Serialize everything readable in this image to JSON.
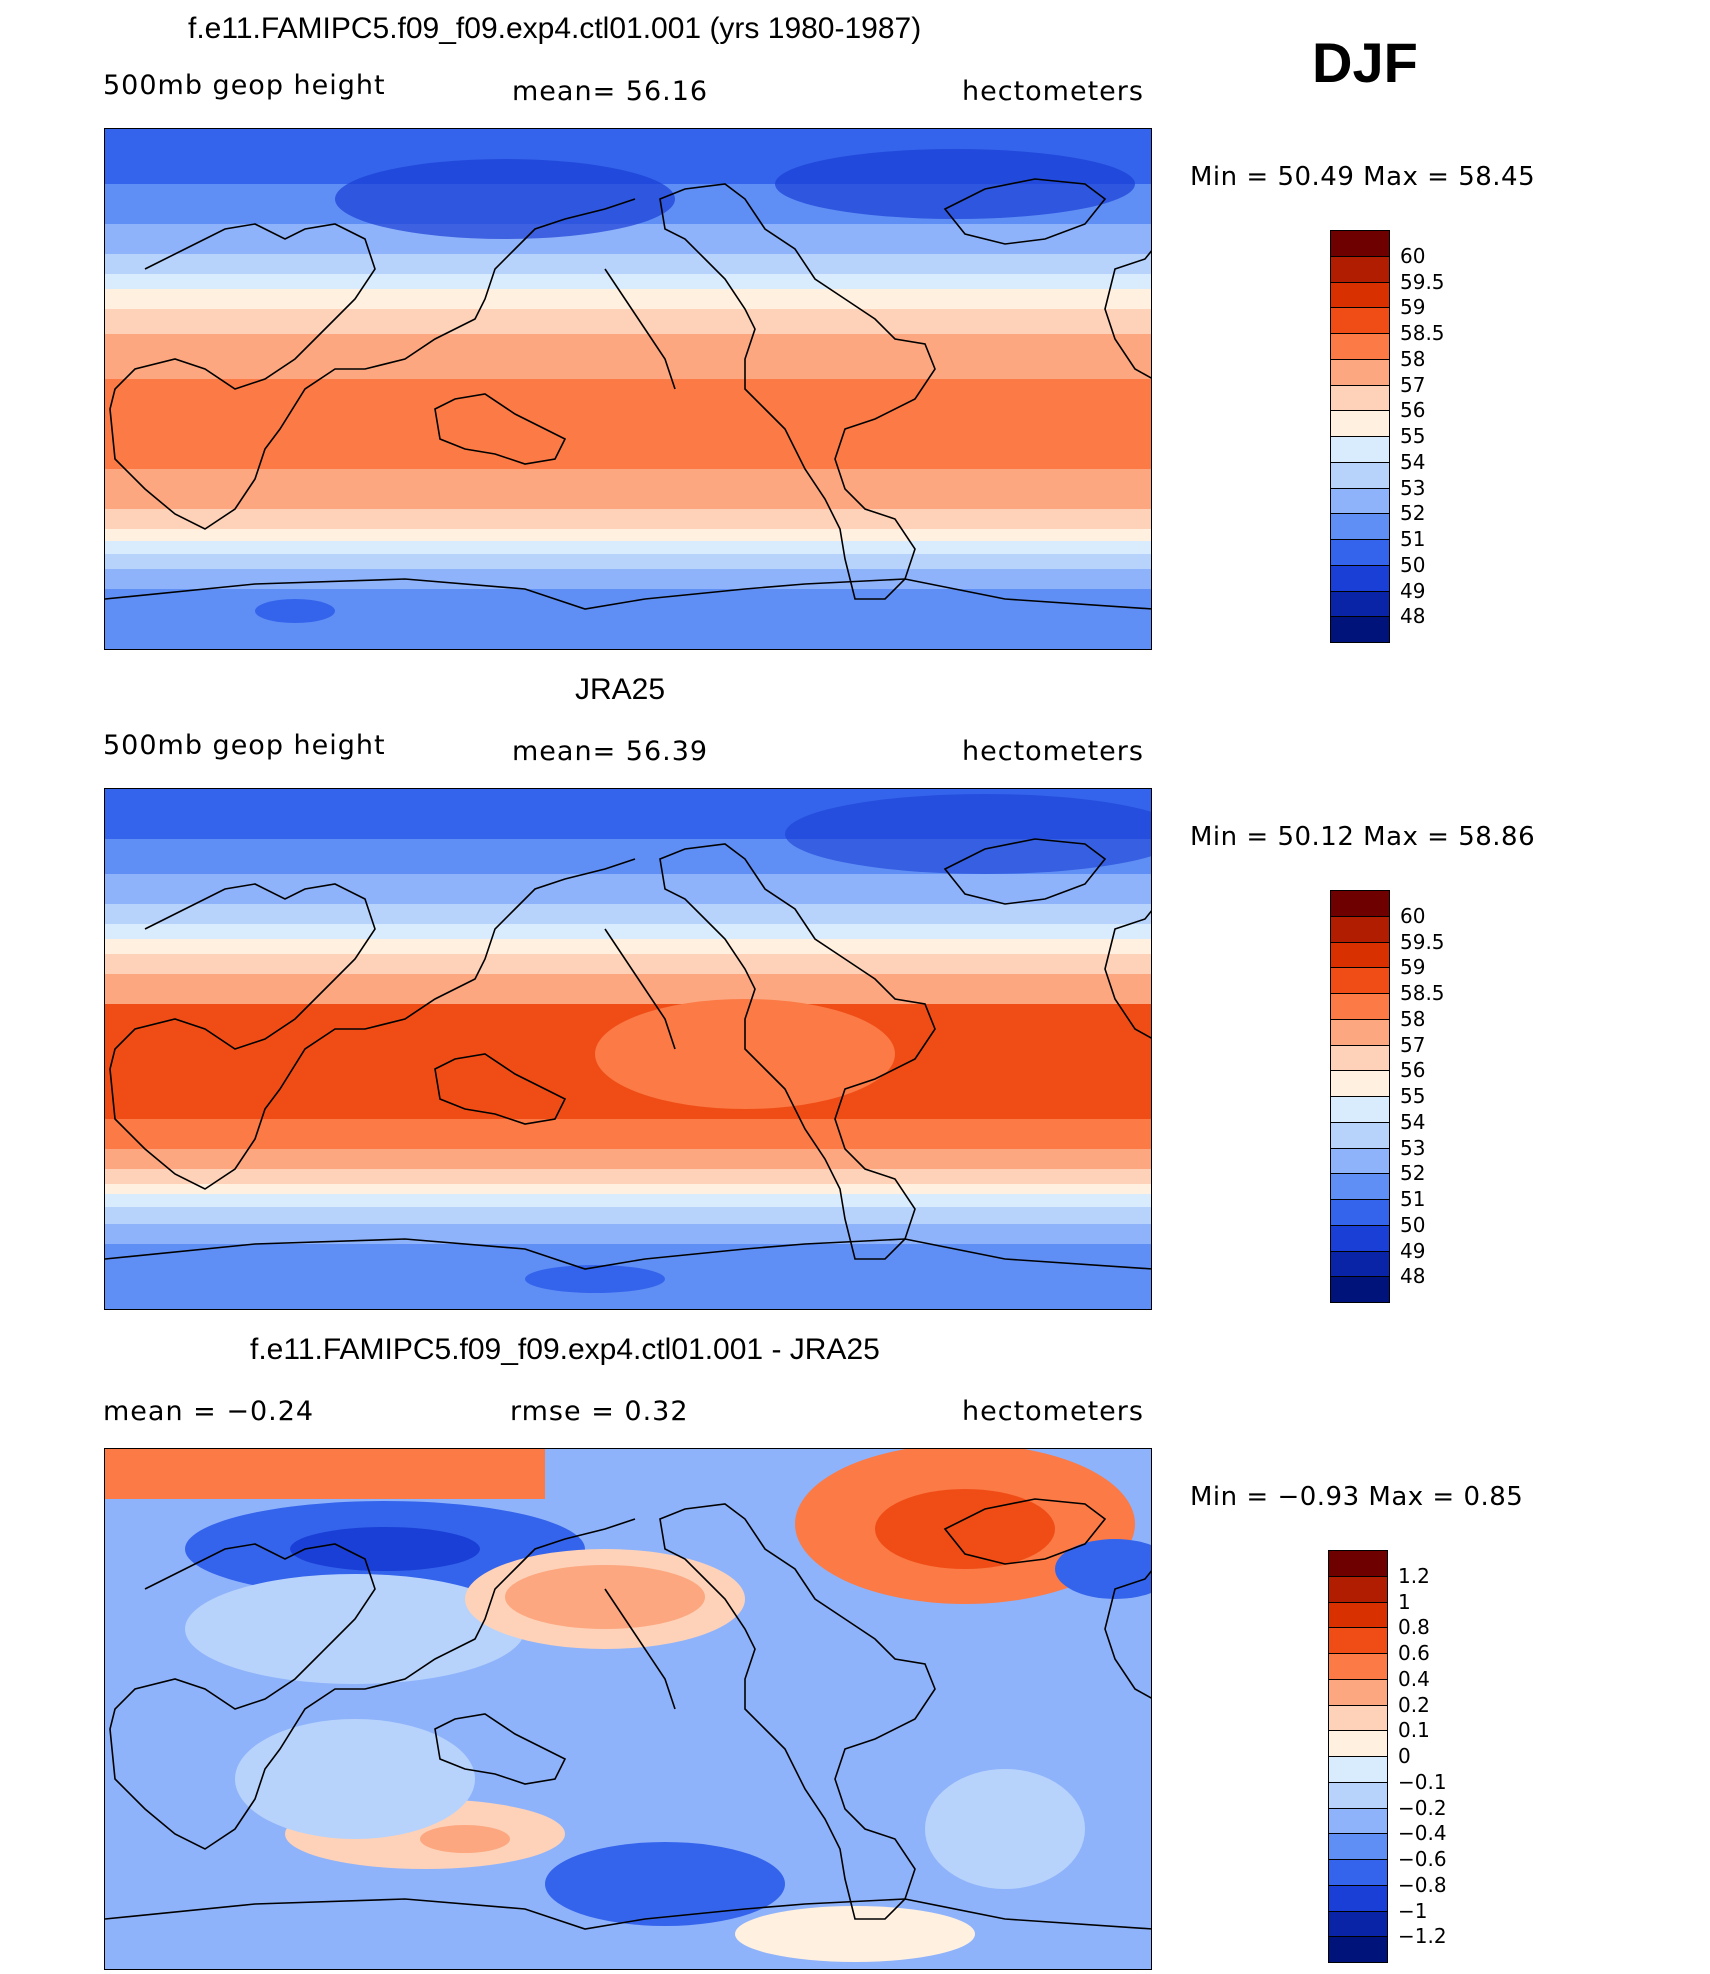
{
  "season": "DJF",
  "panels": [
    {
      "title": "f.e11.FAMIPC5.f09_f09.exp4.ctl01.001 (yrs 1980-1987)",
      "left_label": "500mb  geop  height",
      "center_label": "mean=   56.16",
      "right_label": "hectometers",
      "minmax_label": "Min  =    50.49  Max  =    58.45"
    },
    {
      "title": "JRA25",
      "left_label": "500mb  geop  height",
      "center_label": "mean=   56.39",
      "right_label": "hectometers",
      "minmax_label": "Min  =    50.12  Max  =    58.86"
    },
    {
      "title": "f.e11.FAMIPC5.f09_f09.exp4.ctl01.001 - JRA25",
      "left_label": "mean  =    −0.24",
      "center_label": "rmse  =     0.32",
      "right_label": "hectometers",
      "minmax_label": "Min  =    −0.93  Max  =     0.85"
    }
  ],
  "chart_data": [
    {
      "type": "heatmap",
      "title": "f.e11.FAMIPC5.f09_f09.exp4.ctl01.001 (yrs 1980-1987)",
      "variable": "500mb geop height",
      "units": "hectometers",
      "mean": 56.16,
      "min": 50.49,
      "max": 58.45,
      "colorbar_labels": [
        "60",
        "59.5",
        "59",
        "58.5",
        "58",
        "57",
        "56",
        "55",
        "54",
        "53",
        "52",
        "51",
        "50",
        "49",
        "48"
      ]
    },
    {
      "type": "heatmap",
      "title": "JRA25",
      "variable": "500mb geop height",
      "units": "hectometers",
      "mean": 56.39,
      "min": 50.12,
      "max": 58.86,
      "colorbar_labels": [
        "60",
        "59.5",
        "59",
        "58.5",
        "58",
        "57",
        "56",
        "55",
        "54",
        "53",
        "52",
        "51",
        "50",
        "49",
        "48"
      ]
    },
    {
      "type": "heatmap",
      "title": "f.e11.FAMIPC5.f09_f09.exp4.ctl01.001 - JRA25",
      "units": "hectometers",
      "mean": -0.24,
      "rmse": 0.32,
      "min": -0.93,
      "max": 0.85,
      "colorbar_labels": [
        "1.2",
        "1",
        "0.8",
        "0.6",
        "0.4",
        "0.2",
        "0.1",
        "0",
        "−0.1",
        "−0.2",
        "−0.4",
        "−0.6",
        "−0.8",
        "−1",
        "−1.2"
      ]
    }
  ],
  "colorbar_colors": [
    "#6e0000",
    "#b01d00",
    "#d93000",
    "#f04d16",
    "#fb7a45",
    "#fca77f",
    "#fdd2b8",
    "#fff0e0",
    "#d9ecfd",
    "#b7d3fc",
    "#8fb3fa",
    "#5f8ef5",
    "#3564ec",
    "#1a3fd6",
    "#0a24a8",
    "#00137a"
  ]
}
